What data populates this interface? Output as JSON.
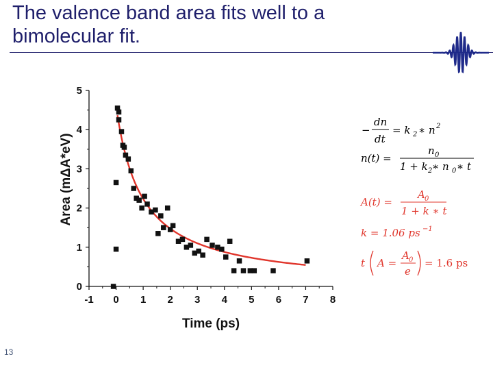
{
  "slide": {
    "title_lines": [
      "The valence band area fits well to a",
      "bimolecular fit."
    ],
    "slide_number": "13",
    "title_color": "#1f1f6b"
  },
  "logo": {
    "icon": "wave-packet-icon",
    "color": "#1f2a8a"
  },
  "equations": {
    "rate_equation": {
      "lhs_minus": "−",
      "lhs_num": "dn",
      "lhs_den": "dt",
      "rhs": "= k",
      "rhs_sub": "2",
      "rhs_rest": " ∗ n",
      "rhs_sup": "2",
      "color": "#000000"
    },
    "solution": {
      "lhs": "n(t) =",
      "num": "n",
      "num_sub": "0",
      "den": "1 + k",
      "den_sub": "2",
      "den_mid": " ∗ n",
      "den_sub2": "0",
      "den_rest": " ∗ t",
      "color": "#000000"
    },
    "area_fit": {
      "lhs": "A(t) =",
      "num": "A",
      "num_sub": "0",
      "den": "1 + k ∗ t",
      "color": "#e0352b"
    },
    "rate_constant": {
      "text": "k = 1.06 ps",
      "sup": "−1",
      "color": "#e0352b"
    },
    "time_constant": {
      "lhs": "t",
      "inner_lhs": "A =",
      "num": "A",
      "num_sub": "0",
      "den": "e",
      "rhs": "= 1.6 ps",
      "color": "#e0352b"
    }
  },
  "chart_data": {
    "type": "scatter",
    "xlabel": "Time (ps)",
    "ylabel": "Area (mΔA*eV)",
    "xlim": [
      -1,
      8
    ],
    "ylim": [
      0,
      5
    ],
    "xticks": [
      "-1",
      "0",
      "1",
      "2",
      "3",
      "4",
      "5",
      "6",
      "7",
      "8"
    ],
    "yticks": [
      "0",
      "1",
      "2",
      "3",
      "4",
      "5"
    ],
    "grid": false,
    "series": [
      {
        "type": "scatter",
        "marker": "square",
        "color": "#111111",
        "x": [
          -0.1,
          0.0,
          0.0,
          0.05,
          0.1,
          0.1,
          0.2,
          0.25,
          0.3,
          0.35,
          0.45,
          0.55,
          0.65,
          0.75,
          0.85,
          0.95,
          1.05,
          1.15,
          1.3,
          1.45,
          1.55,
          1.65,
          1.75,
          1.9,
          2.0,
          2.1,
          2.3,
          2.45,
          2.6,
          2.75,
          2.9,
          3.05,
          3.2,
          3.35,
          3.55,
          3.75,
          3.9,
          4.05,
          4.2,
          4.35,
          4.55,
          4.7,
          4.95,
          5.1,
          5.8,
          7.05
        ],
        "y": [
          0.0,
          0.95,
          2.65,
          4.55,
          4.45,
          4.25,
          3.95,
          3.6,
          3.55,
          3.35,
          3.25,
          2.95,
          2.5,
          2.25,
          2.2,
          2.0,
          2.3,
          2.1,
          1.9,
          1.95,
          1.35,
          1.8,
          1.5,
          2.0,
          1.45,
          1.55,
          1.15,
          1.2,
          1.0,
          1.05,
          0.85,
          0.9,
          0.8,
          1.2,
          1.05,
          1.0,
          0.95,
          0.75,
          1.15,
          0.4,
          0.65,
          0.4,
          0.4,
          0.4,
          0.4,
          0.65
        ]
      },
      {
        "type": "line",
        "color": "#e0352b",
        "fit": {
          "A0": 4.6,
          "k": 1.06,
          "x_start": 0.05,
          "x_end": 7.0
        }
      }
    ]
  }
}
